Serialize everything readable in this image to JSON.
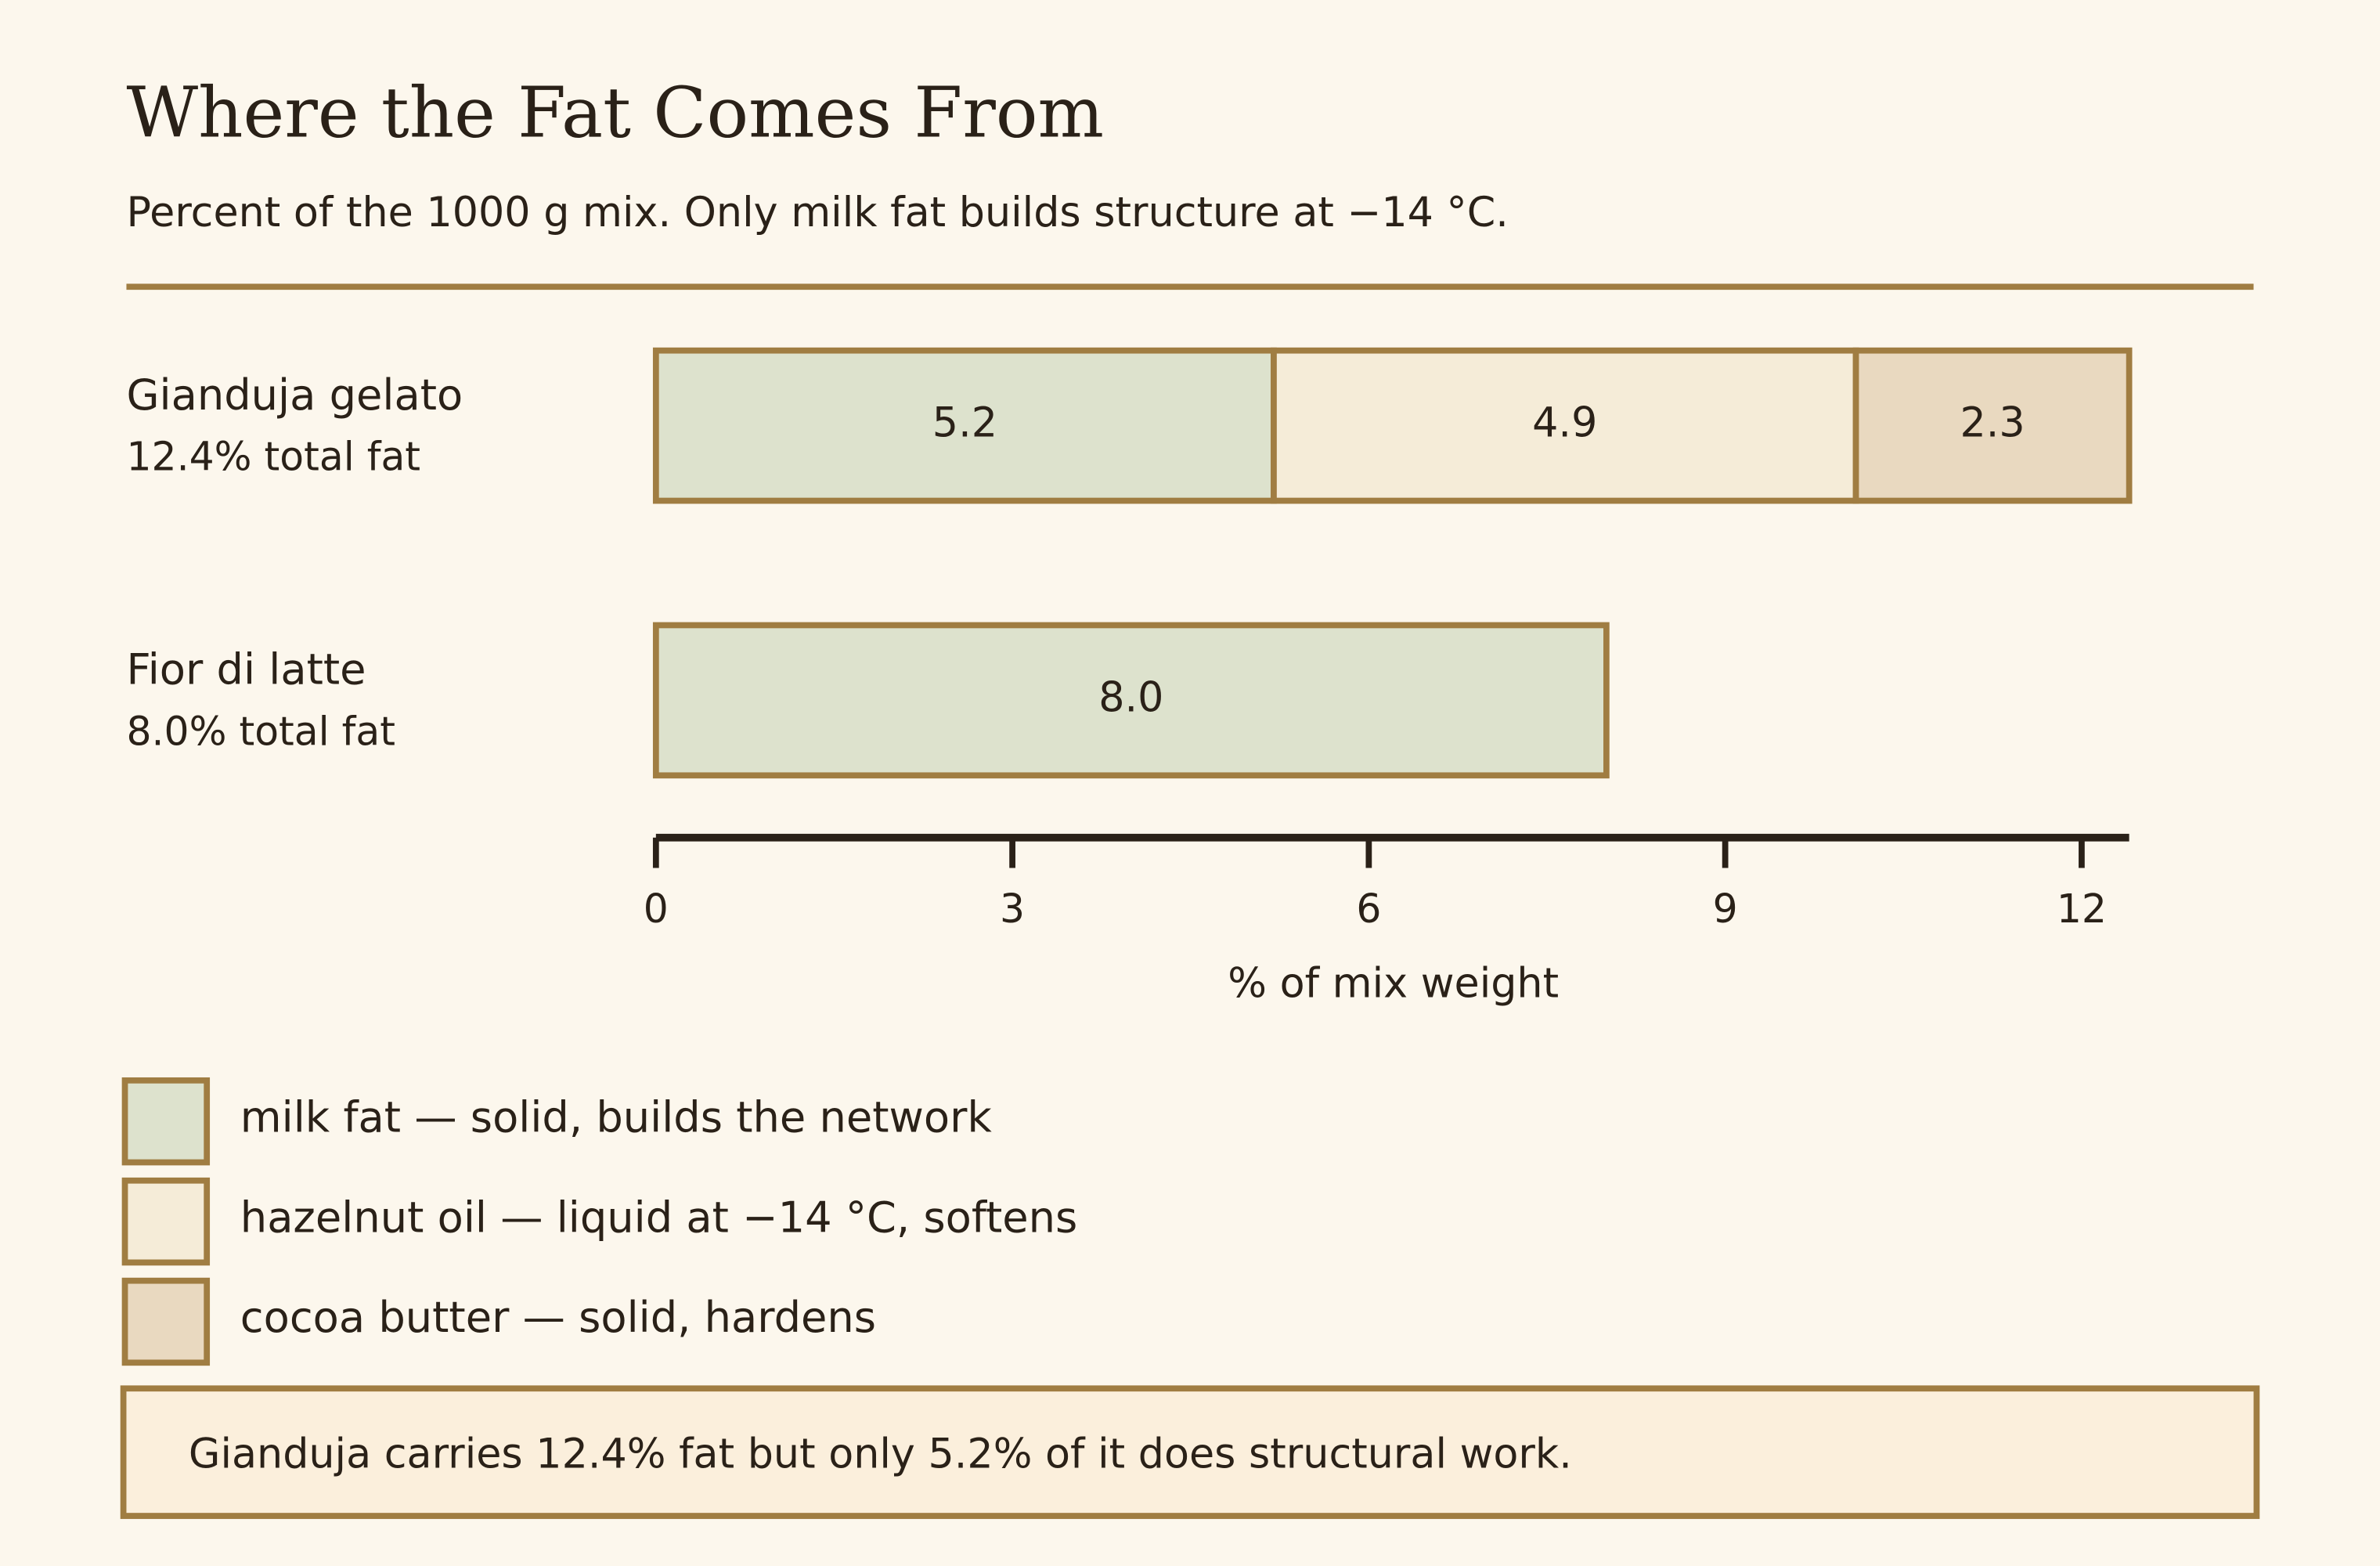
{
  "chart_data": {
    "type": "stacked-barh",
    "title": "Where the Fat Comes From",
    "subtitle": "Percent of the 1000 g mix. Only milk fat builds structure at −14 °C.",
    "categories": [
      "Gianduja gelato",
      "Fior di latte"
    ],
    "category_notes": [
      "12.4% total fat",
      "8.0% total fat"
    ],
    "series": [
      {
        "name": "milk fat — solid, builds the network",
        "color": "#dde2cd",
        "values": [
          5.2,
          8.0
        ],
        "value_labels": [
          "5.2",
          "8.0"
        ]
      },
      {
        "name": "hazelnut oil — liquid at −14 °C, softens",
        "color": "#f5ecd8",
        "values": [
          4.9,
          null
        ],
        "value_labels": [
          "4.9",
          null
        ]
      },
      {
        "name": "cocoa butter — solid, hardens",
        "color": "#e9d9c0",
        "values": [
          2.3,
          null
        ],
        "value_labels": [
          "2.3",
          null
        ]
      }
    ],
    "xlabel": "% of mix weight",
    "xlim": [
      0,
      12.4
    ],
    "xticks": [
      0,
      3,
      6,
      9,
      12
    ],
    "annotation": "Gianduja carries 12.4% fat but only 5.2% of it does structural work."
  }
}
